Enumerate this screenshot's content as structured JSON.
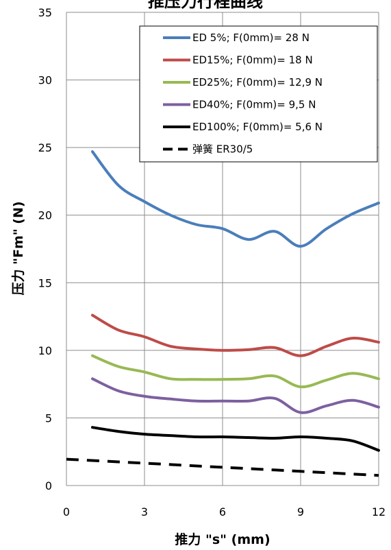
{
  "chart_data": {
    "type": "line",
    "title": "推压力行程曲线",
    "xlabel": "推力 \"s\" (mm)",
    "ylabel": "压力 \"Fm\" (N)",
    "xlim": [
      0,
      12
    ],
    "ylim": [
      0,
      35
    ],
    "xticks": [
      "0",
      "3",
      "6",
      "9",
      "12"
    ],
    "yticks": [
      "0",
      "5",
      "10",
      "15",
      "20",
      "25",
      "30",
      "35"
    ],
    "grid": true,
    "legend_position": "top-right",
    "series": [
      {
        "name": "ED 5%; F(0mm)= 28 N",
        "color": "#4a7ebb",
        "style": "solid",
        "x": [
          1,
          2,
          3,
          4,
          5,
          6,
          7,
          8,
          9,
          10,
          11,
          12
        ],
        "y": [
          24.7,
          22.2,
          21.0,
          20.0,
          19.3,
          19.0,
          18.2,
          18.8,
          17.7,
          19.0,
          20.1,
          20.9
        ]
      },
      {
        "name": "ED15%; F(0mm)= 18 N",
        "color": "#be4b48",
        "style": "solid",
        "x": [
          1,
          2,
          3,
          4,
          5,
          6,
          7,
          8,
          9,
          10,
          11,
          12
        ],
        "y": [
          12.6,
          11.5,
          11.0,
          10.3,
          10.1,
          10.0,
          10.05,
          10.2,
          9.6,
          10.3,
          10.9,
          10.6
        ]
      },
      {
        "name": "ED25%; F(0mm)= 12,9 N",
        "color": "#98b954",
        "style": "solid",
        "x": [
          1,
          2,
          3,
          4,
          5,
          6,
          7,
          8,
          9,
          10,
          11,
          12
        ],
        "y": [
          9.6,
          8.8,
          8.4,
          7.9,
          7.85,
          7.85,
          7.9,
          8.1,
          7.3,
          7.8,
          8.3,
          7.9
        ]
      },
      {
        "name": "ED40%; F(0mm)= 9,5 N",
        "color": "#7d60a0",
        "style": "solid",
        "x": [
          1,
          2,
          3,
          4,
          5,
          6,
          7,
          8,
          9,
          10,
          11,
          12
        ],
        "y": [
          7.9,
          7.0,
          6.6,
          6.4,
          6.25,
          6.25,
          6.25,
          6.45,
          5.4,
          5.9,
          6.3,
          5.8
        ]
      },
      {
        "name": "ED100%; F(0mm)= 5,6 N",
        "color": "#000000",
        "style": "solid",
        "x": [
          1,
          2,
          3,
          4,
          5,
          6,
          7,
          8,
          9,
          10,
          11,
          12
        ],
        "y": [
          4.3,
          4.0,
          3.8,
          3.7,
          3.6,
          3.6,
          3.55,
          3.5,
          3.6,
          3.5,
          3.3,
          2.6
        ]
      },
      {
        "name": "弹簧      ER30/5",
        "color": "#000000",
        "style": "dashed",
        "x": [
          0,
          2,
          4,
          6,
          8,
          10,
          12
        ],
        "y": [
          1.95,
          1.75,
          1.55,
          1.35,
          1.15,
          0.95,
          0.75
        ]
      }
    ]
  }
}
